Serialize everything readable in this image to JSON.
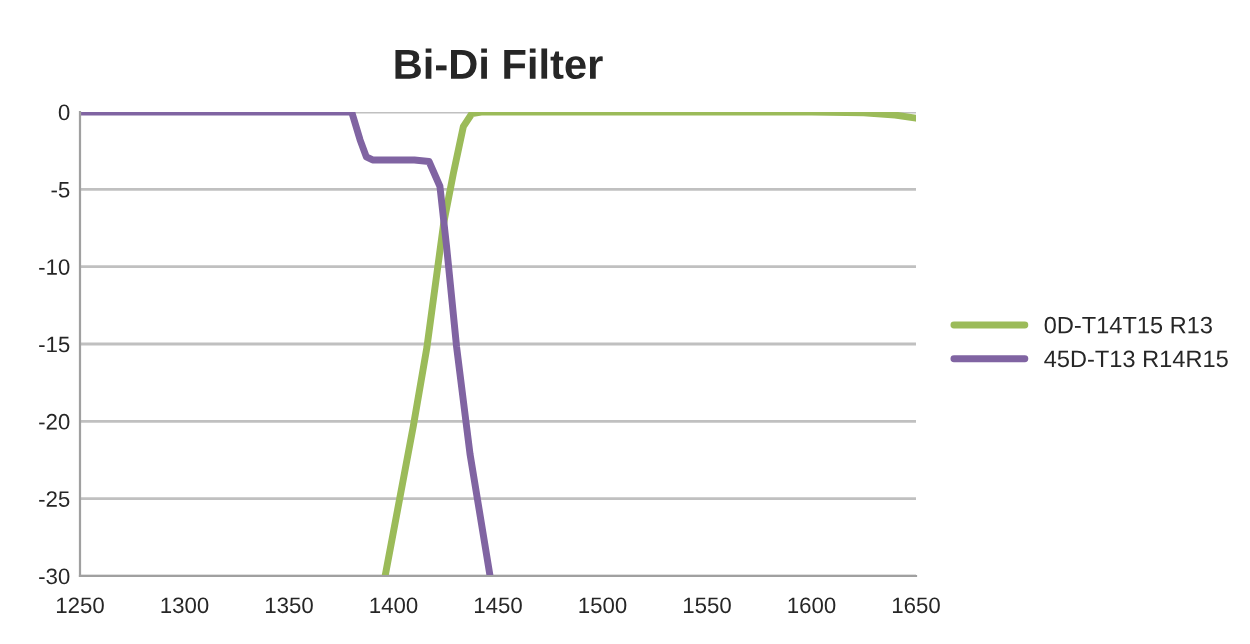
{
  "chart_data": {
    "type": "line",
    "title": "Bi-Di Filter",
    "xlim": [
      1250,
      1650
    ],
    "xticks": [
      1250,
      1300,
      1350,
      1400,
      1450,
      1500,
      1550,
      1600,
      1650
    ],
    "ylim": [
      -30,
      0
    ],
    "yticks": [
      -30,
      -25,
      -20,
      -15,
      -10,
      -5,
      0
    ],
    "grid": "y",
    "legend": "right",
    "marker": "none",
    "line_style": "solid",
    "series": [
      {
        "name": "0D-T14T15 R13",
        "color": "#9bbb59",
        "x": [
          1396,
          1409.5,
          1416,
          1424,
          1428.6,
          1433.4,
          1437.5,
          1442,
          1500,
          1550,
          1600,
          1625,
          1640,
          1650
        ],
        "values": [
          -30,
          -20.3,
          -15.2,
          -7.2,
          -4.0,
          -0.95,
          -0.1,
          0,
          0,
          0,
          0,
          -0.05,
          -0.2,
          -0.4
        ]
      },
      {
        "name": "45D-T13 R14R15",
        "color": "#8064a2",
        "x": [
          1250,
          1300,
          1350,
          1380,
          1384,
          1387,
          1390,
          1400,
          1410,
          1417,
          1422.2,
          1425.4,
          1430.2,
          1436.6,
          1446.2
        ],
        "values": [
          0,
          0,
          0,
          0,
          -1.8,
          -2.9,
          -3.1,
          -3.1,
          -3.1,
          -3.2,
          -4.8,
          -8.7,
          -15.2,
          -22.1,
          -30
        ]
      }
    ]
  }
}
